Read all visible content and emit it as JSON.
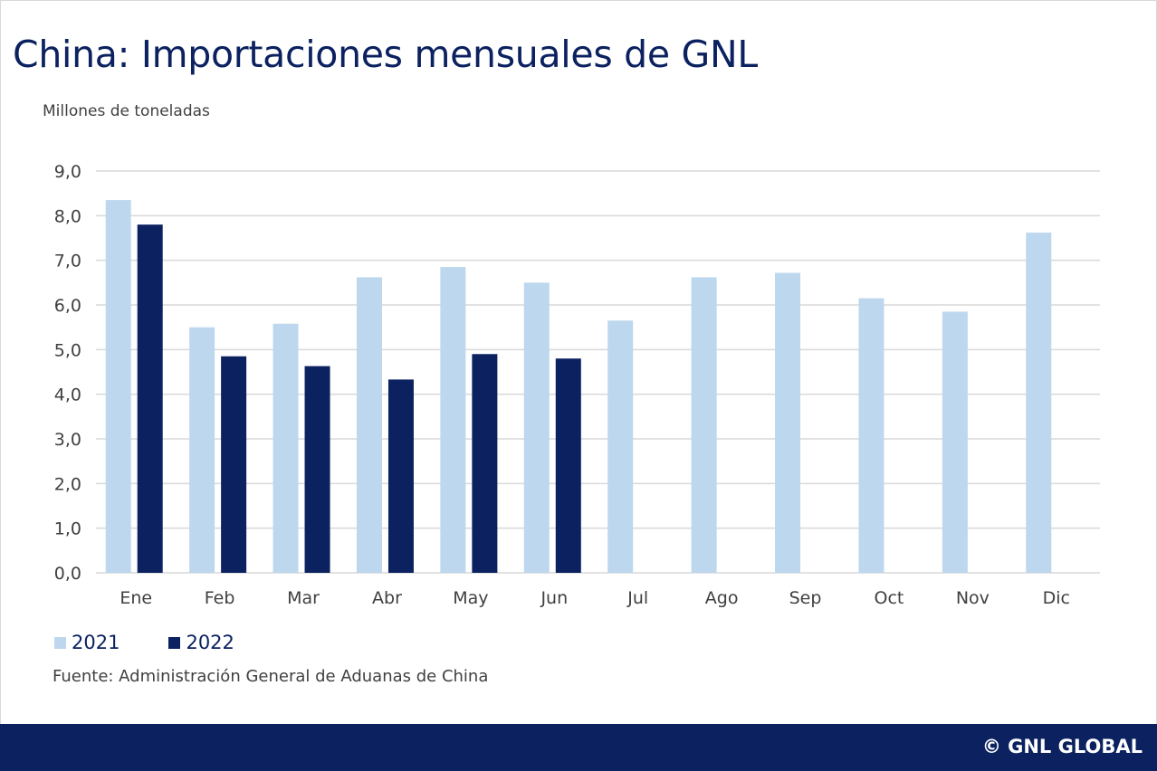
{
  "title": "China: Importaciones mensuales de GNL",
  "unit_label": "Millones de toneladas",
  "source": "Fuente: Administración General de Aduanas de China",
  "brand": "© GNL GLOBAL",
  "colors": {
    "series_2021": "#bdd7ee",
    "series_2022": "#0b2160",
    "grid": "#d9d9d9",
    "title": "#0b2160",
    "footer": "#0b2160"
  },
  "chart_data": {
    "type": "bar",
    "title": "China: Importaciones mensuales de GNL",
    "xlabel": "",
    "ylabel": "Millones de toneladas",
    "ylim": [
      0,
      9
    ],
    "yticks": [
      "0,0",
      "1,0",
      "2,0",
      "3,0",
      "4,0",
      "5,0",
      "6,0",
      "7,0",
      "8,0",
      "9,0"
    ],
    "categories": [
      "Ene",
      "Feb",
      "Mar",
      "Abr",
      "May",
      "Jun",
      "Jul",
      "Ago",
      "Sep",
      "Oct",
      "Nov",
      "Dic"
    ],
    "series": [
      {
        "name": "2021",
        "values": [
          8.35,
          5.5,
          5.58,
          6.62,
          6.85,
          6.5,
          5.65,
          6.62,
          6.72,
          6.15,
          5.85,
          7.62
        ]
      },
      {
        "name": "2022",
        "values": [
          7.8,
          4.85,
          4.63,
          4.33,
          4.9,
          4.8,
          null,
          null,
          null,
          null,
          null,
          null
        ]
      }
    ],
    "grid": true,
    "legend_position": "bottom-left"
  }
}
